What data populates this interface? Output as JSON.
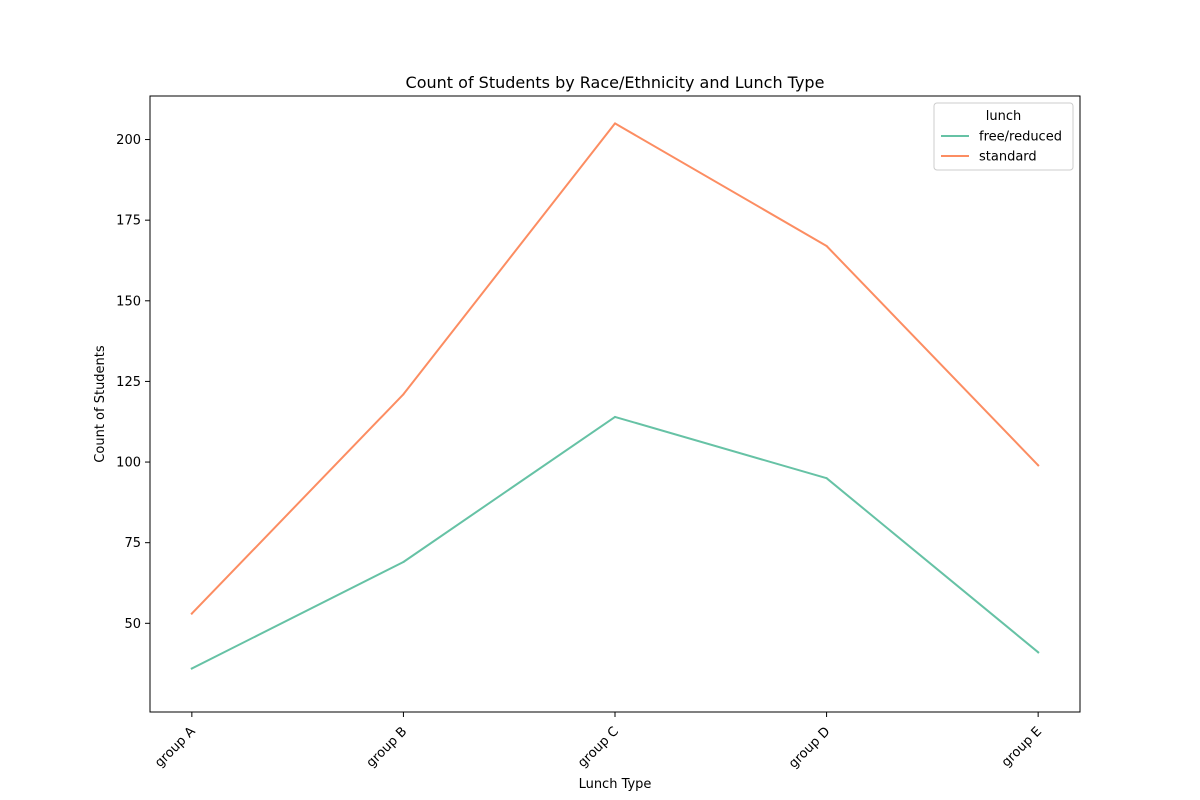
{
  "chart_data": {
    "type": "line",
    "title": "Count of Students by Race/Ethnicity and Lunch Type",
    "xlabel": "Lunch Type",
    "ylabel": "Count of Students",
    "categories": [
      "group A",
      "group B",
      "group C",
      "group D",
      "group E"
    ],
    "ylim": [
      22.5,
      213.5
    ],
    "yticks": [
      50,
      75,
      100,
      125,
      150,
      175,
      200
    ],
    "grid": false,
    "legend": {
      "title": "lunch",
      "placement": "top-right"
    },
    "series": [
      {
        "name": "free/reduced",
        "color": "#66c2a5",
        "values": [
          36,
          69,
          114,
          95,
          41
        ]
      },
      {
        "name": "standard",
        "color": "#fc8d62",
        "values": [
          53,
          121,
          205,
          167,
          99
        ]
      }
    ]
  }
}
